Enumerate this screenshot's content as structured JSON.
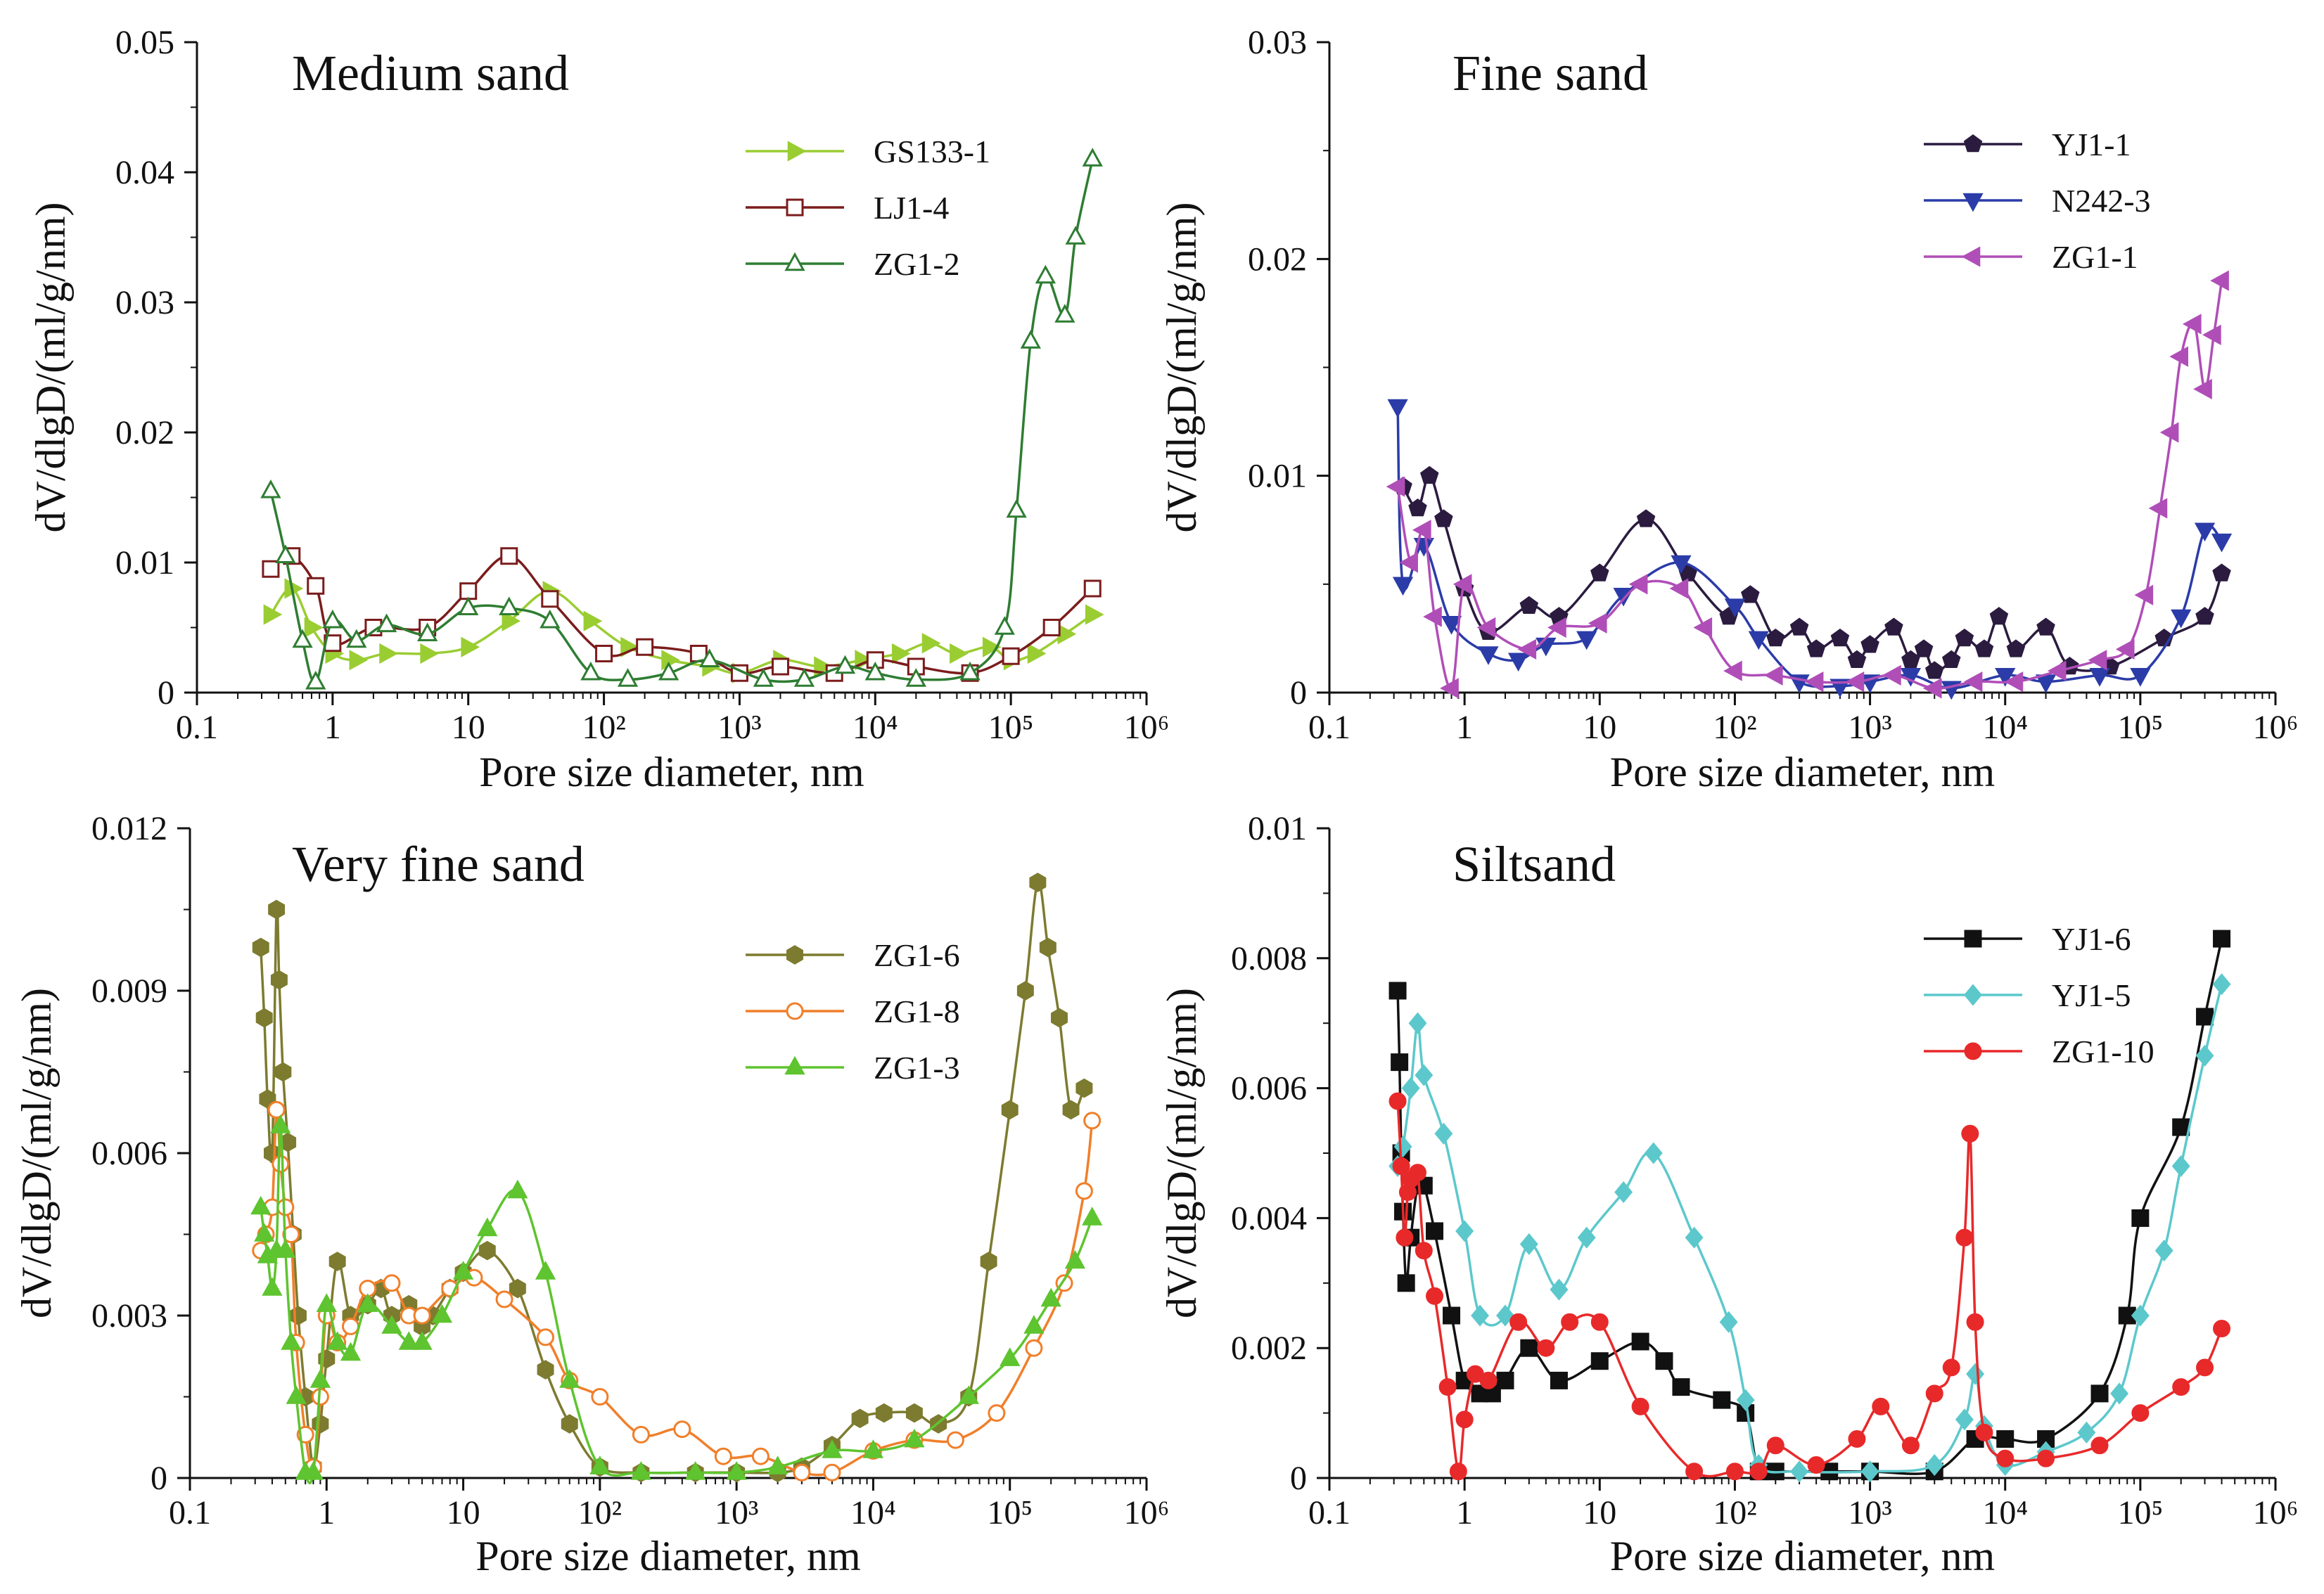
{
  "chart_data": [
    {
      "type": "line",
      "title": "Medium sand",
      "xlabel": "Pore size diameter, nm",
      "ylabel": "dV/dlgD/(ml/g/nm)",
      "xscale": "log",
      "xlim": [
        0.1,
        1000000
      ],
      "ylim": [
        0,
        0.05
      ],
      "xtick_labels": [
        "0.1",
        "1",
        "10",
        "10²",
        "10³",
        "10⁴",
        "10⁵",
        "10⁶"
      ],
      "ytick_values": [
        0,
        0.01,
        0.02,
        0.03,
        0.04,
        0.05
      ],
      "ytick_labels": [
        "0",
        "0.01",
        "0.02",
        "0.03",
        "0.04",
        "0.05"
      ],
      "legend_position": "top-right",
      "series": [
        {
          "name": "GS133-1",
          "color": "#9ACD32",
          "marker": "triangle-right",
          "x": [
            0.35,
            0.5,
            0.7,
            1.0,
            1.5,
            2.5,
            5,
            10,
            20,
            40,
            80,
            150,
            300,
            600,
            1000,
            2000,
            4000,
            8000,
            15000,
            25000,
            40000,
            70000,
            100000,
            150000,
            250000,
            400000
          ],
          "y": [
            0.006,
            0.008,
            0.005,
            0.003,
            0.0025,
            0.003,
            0.003,
            0.0035,
            0.0055,
            0.0078,
            0.0055,
            0.0035,
            0.0025,
            0.002,
            0.0015,
            0.0025,
            0.002,
            0.0025,
            0.003,
            0.0038,
            0.003,
            0.0035,
            0.0025,
            0.003,
            0.0045,
            0.006
          ]
        },
        {
          "name": "LJ1-4",
          "color": "#7B1C1C",
          "marker": "square-open",
          "x": [
            0.35,
            0.5,
            0.75,
            1.0,
            2,
            5,
            10,
            20,
            40,
            100,
            200,
            500,
            1000,
            2000,
            5000,
            10000,
            20000,
            50000,
            100000,
            200000,
            400000
          ],
          "y": [
            0.0095,
            0.0105,
            0.0082,
            0.0038,
            0.005,
            0.005,
            0.0078,
            0.0105,
            0.0072,
            0.003,
            0.0035,
            0.003,
            0.0015,
            0.002,
            0.0015,
            0.0025,
            0.002,
            0.0015,
            0.0028,
            0.005,
            0.008
          ]
        },
        {
          "name": "ZG1-2",
          "color": "#2E7D32",
          "marker": "triangle-up-open",
          "x": [
            0.35,
            0.45,
            0.6,
            0.75,
            1.0,
            1.5,
            2.5,
            5,
            10,
            20,
            40,
            80,
            150,
            300,
            600,
            1500,
            3000,
            6000,
            10000,
            20000,
            50000,
            90000,
            110000,
            140000,
            180000,
            250000,
            300000,
            400000
          ],
          "y": [
            0.0155,
            0.0105,
            0.004,
            0.0008,
            0.0055,
            0.004,
            0.0052,
            0.0045,
            0.0065,
            0.0065,
            0.0055,
            0.0015,
            0.001,
            0.0015,
            0.0025,
            0.001,
            0.001,
            0.002,
            0.0015,
            0.001,
            0.0015,
            0.005,
            0.014,
            0.027,
            0.032,
            0.029,
            0.035,
            0.041
          ]
        }
      ]
    },
    {
      "type": "line",
      "title": "Fine sand",
      "xlabel": "Pore size diameter, nm",
      "ylabel": "dV/dlgD/(ml/g/nm)",
      "xscale": "log",
      "xlim": [
        0.1,
        1000000
      ],
      "ylim": [
        0,
        0.03
      ],
      "xtick_labels": [
        "0.1",
        "1",
        "10",
        "10²",
        "10³",
        "10⁴",
        "10⁵",
        "10⁶"
      ],
      "ytick_values": [
        0,
        0.01,
        0.02,
        0.03
      ],
      "ytick_labels": [
        "0",
        "0.01",
        "0.02",
        "0.03"
      ],
      "legend_position": "top-right",
      "series": [
        {
          "name": "YJ1-1",
          "color": "#2B1B3F",
          "marker": "pentagon",
          "x": [
            0.35,
            0.45,
            0.55,
            0.7,
            1.0,
            1.5,
            3,
            5,
            10,
            22,
            45,
            90,
            130,
            200,
            300,
            400,
            600,
            800,
            1000,
            1500,
            2000,
            2500,
            3000,
            4000,
            5000,
            7000,
            9000,
            12000,
            20000,
            30000,
            60000,
            150000,
            300000,
            400000
          ],
          "y": [
            0.0095,
            0.0085,
            0.01,
            0.008,
            0.0048,
            0.0028,
            0.004,
            0.0035,
            0.0055,
            0.008,
            0.0055,
            0.0035,
            0.0045,
            0.0025,
            0.003,
            0.002,
            0.0025,
            0.0015,
            0.0022,
            0.003,
            0.0015,
            0.002,
            0.001,
            0.0015,
            0.0025,
            0.002,
            0.0035,
            0.002,
            0.003,
            0.0012,
            0.0012,
            0.0025,
            0.0035,
            0.0055
          ]
        },
        {
          "name": "N242-3",
          "color": "#2B3CA8",
          "marker": "triangle-down",
          "x": [
            0.32,
            0.35,
            0.5,
            0.8,
            1.5,
            2.5,
            4,
            8,
            15,
            40,
            100,
            150,
            300,
            600,
            1000,
            2000,
            4000,
            10000,
            20000,
            50000,
            100000,
            200000,
            300000,
            400000
          ],
          "y": [
            0.0132,
            0.005,
            0.0068,
            0.0032,
            0.0018,
            0.0015,
            0.0022,
            0.0025,
            0.0045,
            0.006,
            0.004,
            0.0025,
            0.0005,
            0.0003,
            0.0005,
            0.0008,
            0.0002,
            0.0008,
            0.0005,
            0.0008,
            0.0008,
            0.0035,
            0.0075,
            0.007
          ]
        },
        {
          "name": "ZG1-1",
          "color": "#B04EB8",
          "marker": "triangle-left",
          "x": [
            0.32,
            0.4,
            0.5,
            0.6,
            0.8,
            1.0,
            1.5,
            3,
            5,
            10,
            20,
            40,
            60,
            100,
            200,
            400,
            800,
            1500,
            3000,
            6000,
            12000,
            25000,
            50000,
            80000,
            110000,
            140000,
            170000,
            200000,
            250000,
            300000,
            350000,
            400000
          ],
          "y": [
            0.0095,
            0.006,
            0.0075,
            0.0035,
            0.0002,
            0.005,
            0.003,
            0.002,
            0.003,
            0.0032,
            0.005,
            0.0048,
            0.003,
            0.001,
            0.0008,
            0.0005,
            0.0005,
            0.0008,
            0.0002,
            0.0005,
            0.0005,
            0.001,
            0.0015,
            0.002,
            0.0045,
            0.0085,
            0.012,
            0.0155,
            0.017,
            0.014,
            0.0165,
            0.019
          ]
        }
      ]
    },
    {
      "type": "line",
      "title": "Very fine sand",
      "xlabel": "Pore size diameter, nm",
      "ylabel": "dV/dlgD/(ml/g/nm)",
      "xscale": "log",
      "xlim": [
        0.1,
        1000000
      ],
      "ylim": [
        0,
        0.012
      ],
      "xtick_labels": [
        "0.1",
        "1",
        "10",
        "10²",
        "10³",
        "10⁴",
        "10⁵",
        "10⁶"
      ],
      "ytick_values": [
        0,
        0.003,
        0.006,
        0.009,
        0.012
      ],
      "ytick_labels": [
        "0",
        "0.003",
        "0.006",
        "0.009",
        "0.012"
      ],
      "legend_position": "top-right",
      "series": [
        {
          "name": "ZG1-6",
          "color": "#7D7B2F",
          "marker": "hexagon",
          "x": [
            0.33,
            0.35,
            0.37,
            0.4,
            0.43,
            0.45,
            0.48,
            0.52,
            0.57,
            0.62,
            0.7,
            0.8,
            0.9,
            1.0,
            1.2,
            1.5,
            2,
            2.5,
            3,
            4,
            5,
            6,
            8,
            10,
            15,
            25,
            40,
            60,
            100,
            200,
            500,
            1000,
            2000,
            3000,
            5000,
            8000,
            12000,
            20000,
            30000,
            50000,
            70000,
            100000,
            130000,
            160000,
            190000,
            230000,
            280000,
            350000
          ],
          "y": [
            0.0098,
            0.0085,
            0.007,
            0.006,
            0.0105,
            0.0092,
            0.0075,
            0.0062,
            0.0045,
            0.003,
            0.0015,
            0.0002,
            0.001,
            0.0022,
            0.004,
            0.003,
            0.0032,
            0.0035,
            0.003,
            0.0032,
            0.0028,
            0.003,
            0.0035,
            0.0038,
            0.0042,
            0.0035,
            0.002,
            0.001,
            0.0002,
            0.0001,
            0.0001,
            0.0001,
            0.0001,
            0.0002,
            0.0006,
            0.0011,
            0.0012,
            0.0012,
            0.001,
            0.0015,
            0.004,
            0.0068,
            0.009,
            0.011,
            0.0098,
            0.0085,
            0.0068,
            0.0072
          ]
        },
        {
          "name": "ZG1-8",
          "color": "#F07F2A",
          "marker": "circle-open",
          "x": [
            0.33,
            0.36,
            0.4,
            0.43,
            0.46,
            0.5,
            0.55,
            0.6,
            0.7,
            0.8,
            0.9,
            1.0,
            1.2,
            1.5,
            2,
            3,
            4,
            5,
            8,
            12,
            20,
            40,
            60,
            100,
            200,
            400,
            800,
            1500,
            3000,
            5000,
            10000,
            20000,
            40000,
            80000,
            150000,
            250000,
            350000,
            400000
          ],
          "y": [
            0.0042,
            0.0045,
            0.005,
            0.0068,
            0.0058,
            0.005,
            0.0045,
            0.0025,
            0.0008,
            0.0002,
            0.0015,
            0.003,
            0.0025,
            0.0028,
            0.0035,
            0.0036,
            0.003,
            0.003,
            0.0035,
            0.0037,
            0.0033,
            0.0026,
            0.0018,
            0.0015,
            0.0008,
            0.0009,
            0.0004,
            0.0004,
            0.0001,
            0.0001,
            0.0005,
            0.0007,
            0.0007,
            0.0012,
            0.0024,
            0.0036,
            0.0053,
            0.0066
          ]
        },
        {
          "name": "ZG1-3",
          "color": "#5EC42F",
          "marker": "triangle-up",
          "x": [
            0.33,
            0.35,
            0.37,
            0.4,
            0.43,
            0.46,
            0.5,
            0.55,
            0.6,
            0.7,
            0.8,
            0.9,
            1.0,
            1.2,
            1.5,
            2,
            3,
            4,
            5,
            7,
            10,
            15,
            25,
            40,
            60,
            100,
            200,
            500,
            1000,
            2000,
            5000,
            10000,
            20000,
            50000,
            100000,
            150000,
            200000,
            300000,
            400000
          ],
          "y": [
            0.005,
            0.0045,
            0.0041,
            0.0035,
            0.0042,
            0.0065,
            0.0042,
            0.0025,
            0.0015,
            0.0001,
            0.0001,
            0.0018,
            0.0032,
            0.0025,
            0.0023,
            0.0032,
            0.0028,
            0.0025,
            0.0025,
            0.003,
            0.0038,
            0.0046,
            0.0053,
            0.0038,
            0.0018,
            0.0002,
            0.0001,
            0.0001,
            0.0001,
            0.0002,
            0.0005,
            0.0005,
            0.0007,
            0.0015,
            0.0022,
            0.0028,
            0.0033,
            0.004,
            0.0048
          ]
        }
      ]
    },
    {
      "type": "line",
      "title": "Siltsand",
      "xlabel": "Pore size diameter, nm",
      "ylabel": "dV/dlgD/(ml/g/nm)",
      "xscale": "log",
      "xlim": [
        0.1,
        1000000
      ],
      "ylim": [
        0,
        0.01
      ],
      "xtick_labels": [
        "0.1",
        "1",
        "10",
        "10²",
        "10³",
        "10⁴",
        "10⁵",
        "10⁶"
      ],
      "ytick_values": [
        0,
        0.002,
        0.004,
        0.006,
        0.008,
        0.01
      ],
      "ytick_labels": [
        "0",
        "0.002",
        "0.004",
        "0.006",
        "0.008",
        "0.01"
      ],
      "legend_position": "top-right",
      "series": [
        {
          "name": "YJ1-6",
          "color": "#111111",
          "marker": "square",
          "x": [
            0.32,
            0.33,
            0.34,
            0.35,
            0.37,
            0.4,
            0.45,
            0.5,
            0.6,
            0.8,
            1.0,
            1.3,
            1.6,
            2,
            3,
            5,
            10,
            20,
            30,
            40,
            80,
            120,
            150,
            200,
            500,
            1000,
            3000,
            6000,
            10000,
            20000,
            50000,
            80000,
            100000,
            200000,
            300000,
            400000
          ],
          "y": [
            0.0075,
            0.0064,
            0.005,
            0.0041,
            0.003,
            0.0037,
            0.0045,
            0.0045,
            0.0038,
            0.0025,
            0.0015,
            0.0013,
            0.0013,
            0.0015,
            0.002,
            0.0015,
            0.0018,
            0.0021,
            0.0018,
            0.0014,
            0.0012,
            0.001,
            0.0001,
            0.0001,
            0.0001,
            0.0001,
            0.0001,
            0.0006,
            0.0006,
            0.0006,
            0.0013,
            0.0025,
            0.004,
            0.0054,
            0.0071,
            0.0083
          ]
        },
        {
          "name": "YJ1-5",
          "color": "#5CC8CC",
          "marker": "diamond",
          "x": [
            0.32,
            0.35,
            0.4,
            0.45,
            0.5,
            0.7,
            1.0,
            1.3,
            2,
            3,
            5,
            8,
            15,
            25,
            50,
            90,
            120,
            150,
            300,
            1000,
            3000,
            5000,
            6000,
            7000,
            10000,
            20000,
            40000,
            70000,
            100000,
            150000,
            200000,
            300000,
            400000
          ],
          "y": [
            0.0048,
            0.0051,
            0.006,
            0.007,
            0.0062,
            0.0053,
            0.0038,
            0.0025,
            0.0025,
            0.0036,
            0.0029,
            0.0037,
            0.0044,
            0.005,
            0.0037,
            0.0024,
            0.0012,
            0.0002,
            0.0001,
            0.0001,
            0.0002,
            0.0009,
            0.0016,
            0.0008,
            0.0002,
            0.0004,
            0.0007,
            0.0013,
            0.0025,
            0.0035,
            0.0048,
            0.0065,
            0.0076
          ]
        },
        {
          "name": "ZG1-10",
          "color": "#E8292A",
          "marker": "circle",
          "x": [
            0.32,
            0.34,
            0.36,
            0.38,
            0.4,
            0.45,
            0.5,
            0.6,
            0.75,
            0.9,
            1.0,
            1.2,
            1.5,
            2.5,
            4,
            6,
            10,
            20,
            50,
            100,
            150,
            200,
            400,
            800,
            1200,
            2000,
            3000,
            4000,
            5000,
            5500,
            6000,
            7000,
            10000,
            20000,
            50000,
            100000,
            200000,
            300000,
            400000
          ],
          "y": [
            0.0058,
            0.0048,
            0.0037,
            0.0044,
            0.0046,
            0.0047,
            0.0035,
            0.0028,
            0.0014,
            0.0001,
            0.0009,
            0.0016,
            0.0015,
            0.0024,
            0.002,
            0.0024,
            0.0024,
            0.0011,
            0.0001,
            0.0001,
            0.0001,
            0.0005,
            0.0002,
            0.0006,
            0.0011,
            0.0005,
            0.0013,
            0.0017,
            0.0037,
            0.0053,
            0.0024,
            0.0007,
            0.0003,
            0.0003,
            0.0005,
            0.001,
            0.0014,
            0.0017,
            0.0023
          ]
        }
      ]
    }
  ]
}
